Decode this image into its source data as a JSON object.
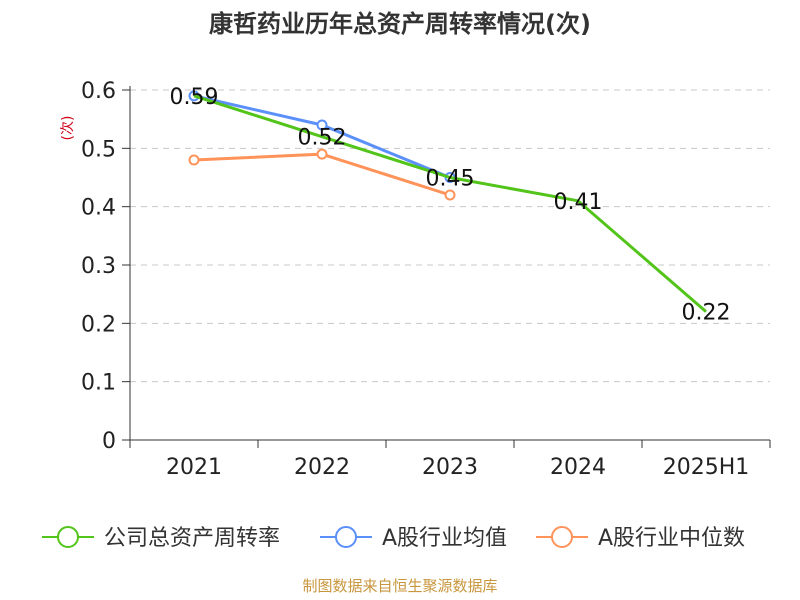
{
  "chart_data": {
    "type": "line",
    "title": "康哲药业历年总资产周转率情况(次)",
    "ylabel": "(次)",
    "xlabel": "",
    "categories": [
      "2021",
      "2022",
      "2023",
      "2024",
      "2025H1"
    ],
    "ylim": [
      0,
      0.6
    ],
    "yticks": [
      "0",
      "0.1",
      "0.2",
      "0.3",
      "0.4",
      "0.5",
      "0.6"
    ],
    "grid": true,
    "legend_position": "bottom",
    "series": [
      {
        "name": "公司总资产周转率",
        "color": "#52c41a",
        "values": [
          0.59,
          0.52,
          0.45,
          0.41,
          0.22
        ],
        "labels": [
          "0.59",
          "0.52",
          "0.45",
          "0.41",
          "0.22"
        ]
      },
      {
        "name": "A股行业均值",
        "color": "#5b8ff9",
        "values": [
          0.59,
          0.54,
          0.45,
          null,
          null
        ]
      },
      {
        "name": "A股行业中位数",
        "color": "#ff9359",
        "values": [
          0.48,
          0.49,
          0.42,
          null,
          null
        ]
      }
    ]
  },
  "source": "制图数据来自恒生聚源数据库"
}
